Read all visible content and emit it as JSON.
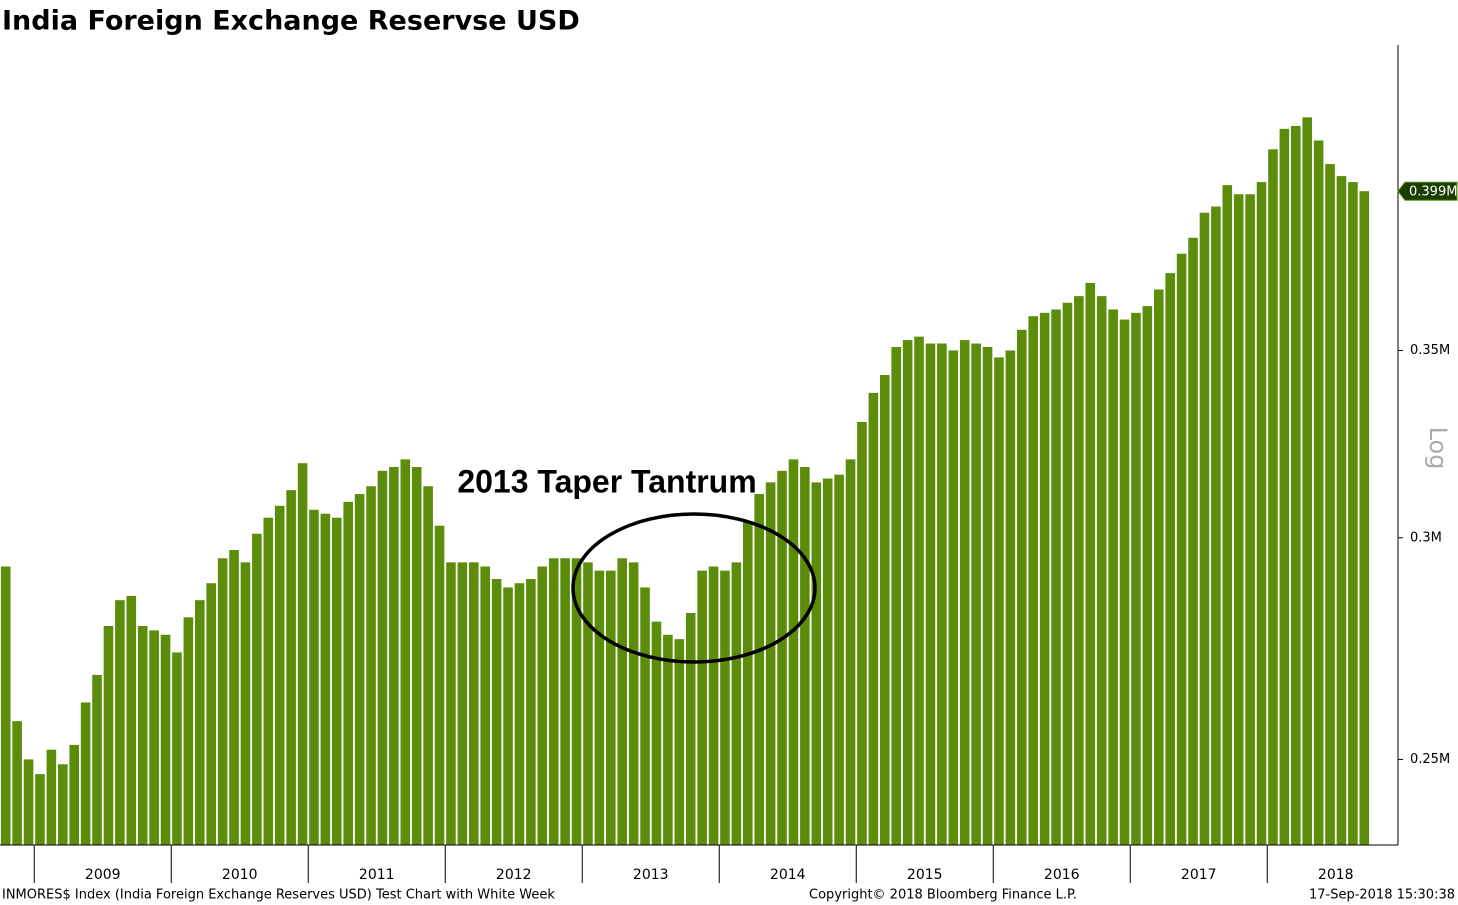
{
  "chart_data": {
    "type": "bar",
    "title": "India Foreign Exchange Reservse USD",
    "annotation": "2013 Taper Tantrum",
    "scale_label": "Log",
    "log_scale": true,
    "color": "#5b8c0a",
    "last_value_label": "0.399M",
    "footer_left": "INMORES$ Index (India Foreign Exchange Reserves USD) Test Chart with White  Week",
    "footer_center": "Copyright© 2018 Bloomberg Finance L.P.",
    "footer_right": "17-Sep-2018 15:30:38",
    "ylim": [
      0.233,
      0.45
    ],
    "yticks": [
      {
        "value": 0.25,
        "label": "0.25M"
      },
      {
        "value": 0.3,
        "label": "0.3M"
      },
      {
        "value": 0.35,
        "label": "0.35M"
      }
    ],
    "categories": [
      null,
      null,
      null,
      null,
      null,
      null,
      null,
      null,
      null,
      "2009",
      null,
      null,
      null,
      null,
      null,
      null,
      null,
      null,
      null,
      null,
      null,
      "2010",
      null,
      null,
      null,
      null,
      null,
      null,
      null,
      null,
      null,
      null,
      null,
      "2011",
      null,
      null,
      null,
      null,
      null,
      null,
      null,
      null,
      null,
      null,
      null,
      "2012",
      null,
      null,
      null,
      null,
      null,
      null,
      null,
      null,
      null,
      null,
      null,
      "2013",
      null,
      null,
      null,
      null,
      null,
      null,
      null,
      null,
      null,
      null,
      null,
      "2014",
      null,
      null,
      null,
      null,
      null,
      null,
      null,
      null,
      null,
      null,
      null,
      "2015",
      null,
      null,
      null,
      null,
      null,
      null,
      null,
      null,
      null,
      null,
      null,
      "2016",
      null,
      null,
      null,
      null,
      null,
      null,
      null,
      null,
      null,
      null,
      null,
      "2017",
      null,
      null,
      null,
      null,
      null,
      null,
      null,
      null,
      null,
      null,
      null,
      "2018",
      null,
      null
    ],
    "values": [
      0.293,
      0.258,
      0.25,
      0.247,
      0.252,
      0.249,
      0.253,
      0.262,
      0.268,
      0.279,
      0.285,
      0.286,
      0.279,
      0.278,
      0.277,
      0.273,
      0.281,
      0.285,
      0.289,
      0.295,
      0.297,
      0.294,
      0.301,
      0.305,
      0.308,
      0.312,
      0.319,
      0.307,
      0.306,
      0.305,
      0.309,
      0.311,
      0.313,
      0.317,
      0.318,
      0.32,
      0.318,
      0.313,
      0.303,
      0.294,
      0.294,
      0.294,
      0.293,
      0.29,
      0.288,
      0.289,
      0.29,
      0.293,
      0.295,
      0.295,
      0.295,
      0.294,
      0.292,
      0.292,
      0.295,
      0.294,
      0.288,
      0.28,
      0.277,
      0.276,
      0.282,
      0.292,
      0.293,
      0.292,
      0.294,
      0.304,
      0.311,
      0.314,
      0.317,
      0.32,
      0.318,
      0.314,
      0.315,
      0.316,
      0.32,
      0.33,
      0.338,
      0.343,
      0.351,
      0.353,
      0.354,
      0.352,
      0.352,
      0.35,
      0.353,
      0.352,
      0.351,
      0.348,
      0.35,
      0.356,
      0.36,
      0.361,
      0.362,
      0.364,
      0.366,
      0.37,
      0.366,
      0.362,
      0.359,
      0.361,
      0.363,
      0.368,
      0.373,
      0.379,
      0.384,
      0.392,
      0.394,
      0.401,
      0.398,
      0.398,
      0.402,
      0.413,
      0.42,
      0.421,
      0.424,
      0.416,
      0.408,
      0.404,
      0.402,
      0.399
    ]
  }
}
